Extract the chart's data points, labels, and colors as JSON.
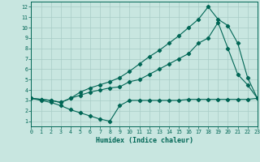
{
  "xlabel": "Humidex (Indice chaleur)",
  "bg_color": "#c8e6e0",
  "grid_color": "#a8ccc6",
  "line_color": "#006655",
  "xlim": [
    0,
    23
  ],
  "ylim": [
    0.5,
    12.5
  ],
  "xticks": [
    0,
    1,
    2,
    3,
    4,
    5,
    6,
    7,
    8,
    9,
    10,
    11,
    12,
    13,
    14,
    15,
    16,
    17,
    18,
    19,
    20,
    21,
    22,
    23
  ],
  "yticks": [
    1,
    2,
    3,
    4,
    5,
    6,
    7,
    8,
    9,
    10,
    11,
    12
  ],
  "curve1_x": [
    0,
    1,
    2,
    3,
    4,
    5,
    6,
    7,
    8,
    9,
    10,
    11,
    12,
    13,
    14,
    15,
    16,
    17,
    18,
    19,
    20,
    21,
    22,
    23
  ],
  "curve1_y": [
    3.2,
    3.0,
    2.8,
    2.5,
    2.1,
    1.8,
    1.5,
    1.2,
    1.0,
    2.5,
    3.0,
    3.0,
    3.0,
    3.0,
    3.0,
    3.0,
    3.1,
    3.1,
    3.1,
    3.1,
    3.1,
    3.1,
    3.1,
    3.2
  ],
  "curve2_x": [
    0,
    1,
    2,
    3,
    4,
    5,
    6,
    7,
    8,
    9,
    10,
    11,
    12,
    13,
    14,
    15,
    16,
    17,
    18,
    19,
    20,
    21,
    22,
    23
  ],
  "curve2_y": [
    3.2,
    3.1,
    3.0,
    2.8,
    3.2,
    3.5,
    3.8,
    4.0,
    4.2,
    4.3,
    4.8,
    5.0,
    5.5,
    6.0,
    6.5,
    7.0,
    7.5,
    8.5,
    9.0,
    10.5,
    8.0,
    5.5,
    4.5,
    3.2
  ],
  "curve3_x": [
    0,
    1,
    2,
    3,
    4,
    5,
    6,
    7,
    8,
    9,
    10,
    11,
    12,
    13,
    14,
    15,
    16,
    17,
    18,
    19,
    20,
    21,
    22,
    23
  ],
  "curve3_y": [
    3.2,
    3.1,
    3.0,
    2.8,
    3.2,
    3.8,
    4.2,
    4.5,
    4.8,
    5.2,
    5.8,
    6.5,
    7.2,
    7.8,
    8.5,
    9.2,
    10.0,
    10.8,
    12.0,
    10.8,
    10.2,
    8.5,
    5.2,
    3.2
  ]
}
